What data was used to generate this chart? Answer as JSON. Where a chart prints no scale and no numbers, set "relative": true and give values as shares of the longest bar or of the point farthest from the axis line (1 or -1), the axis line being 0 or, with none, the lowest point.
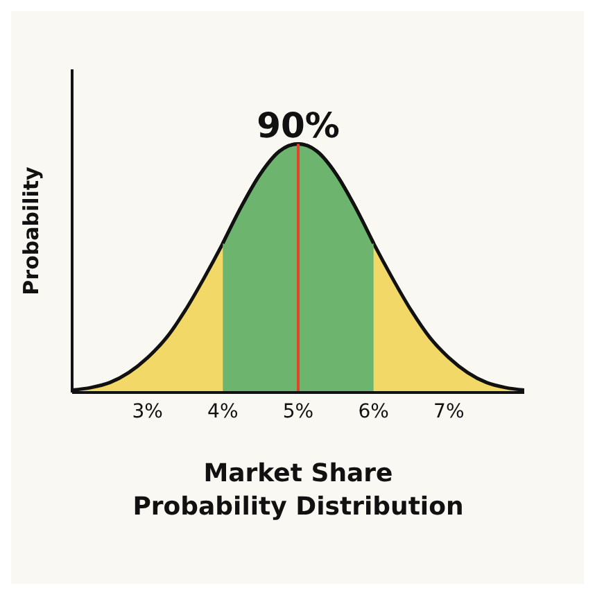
{
  "chart_data": {
    "type": "area",
    "relative": true,
    "xlabel": "Market Share\nProbability Distribution",
    "ylabel": "Probability",
    "annotations": [
      "90%"
    ],
    "xlim": [
      2,
      8
    ],
    "xticks": [
      {
        "value": 3,
        "label": "3%"
      },
      {
        "value": 4,
        "label": "4%"
      },
      {
        "value": 5,
        "label": "5%"
      },
      {
        "value": 6,
        "label": "6%"
      },
      {
        "value": 7,
        "label": "7%"
      }
    ],
    "tick_labels": "x",
    "series": [
      {
        "color": "#f2d866",
        "x": [
          2,
          2.25,
          2.5,
          2.75,
          3,
          3.25,
          3.5,
          3.75,
          4,
          4.25,
          4.5,
          4.75,
          5,
          5.25,
          5.5,
          5.75,
          6,
          6.25,
          6.5,
          6.75,
          7,
          7.25,
          7.5,
          7.75,
          8
        ],
        "values": [
          0.01,
          0.02,
          0.04,
          0.08,
          0.14,
          0.22,
          0.33,
          0.46,
          0.6,
          0.75,
          0.88,
          0.97,
          1,
          0.97,
          0.88,
          0.75,
          0.6,
          0.46,
          0.33,
          0.22,
          0.14,
          0.08,
          0.04,
          0.02,
          0.01
        ]
      },
      {
        "color": "#6db56f",
        "x": [
          4,
          4.25,
          4.5,
          4.75,
          5,
          5.25,
          5.5,
          5.75,
          6
        ],
        "values": [
          0.6,
          0.75,
          0.88,
          0.97,
          1,
          0.97,
          0.88,
          0.75,
          0.6
        ]
      }
    ],
    "ref_lines": [
      {
        "axis": "x",
        "value": 5,
        "color": "#e0452a"
      }
    ]
  }
}
